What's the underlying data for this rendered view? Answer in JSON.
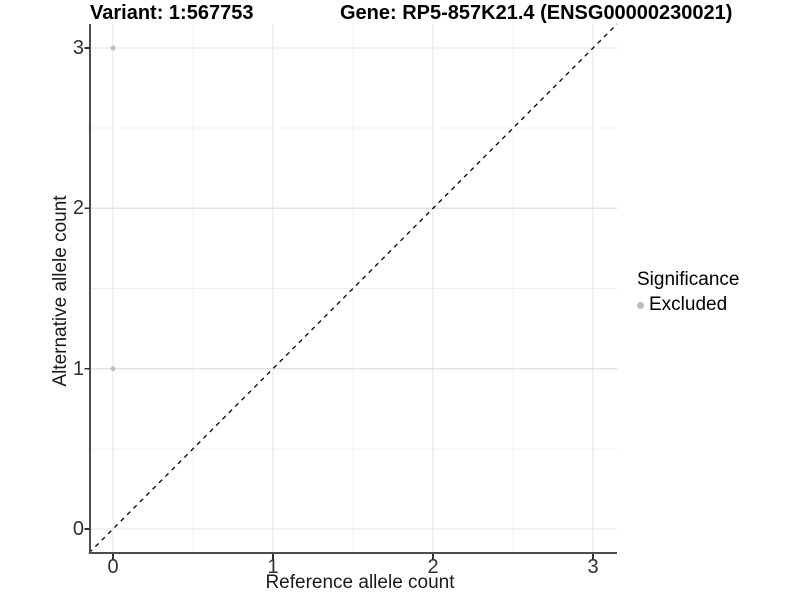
{
  "colors": {
    "point_excluded": "#bcbcbc",
    "grid_major": "#e3e3e3",
    "grid_minor": "#f0f0f0",
    "axis_line": "#4d4d4d",
    "tick_mark": "#333333",
    "reference_line": "#111111",
    "text": "#000000"
  },
  "chart_data": {
    "type": "scatter",
    "titles": {
      "left": "Variant: 1:567753",
      "right": "Gene: RP5-857K21.4 (ENSG00000230021)"
    },
    "xlabel": "Reference allele count",
    "ylabel": "Alternative allele count",
    "xlim": [
      -0.15,
      3.15
    ],
    "ylim": [
      -0.15,
      3.15
    ],
    "x_ticks": [
      0,
      1,
      2,
      3
    ],
    "y_ticks": [
      0,
      1,
      2,
      3
    ],
    "x_minor_ticks": [
      0.5,
      1.5,
      2.5
    ],
    "y_minor_ticks": [
      0.5,
      1.5,
      2.5
    ],
    "grid": "major+minor",
    "reference_line": {
      "slope": 1,
      "intercept": 0,
      "style": "dashed"
    },
    "series": [
      {
        "name": "Excluded",
        "color": "#bcbcbc",
        "points": [
          [
            0,
            3
          ],
          [
            0,
            1
          ]
        ]
      }
    ],
    "legend": {
      "title": "Significance",
      "position": "right",
      "entries": [
        {
          "label": "Excluded",
          "color": "#bcbcbc"
        }
      ]
    }
  }
}
